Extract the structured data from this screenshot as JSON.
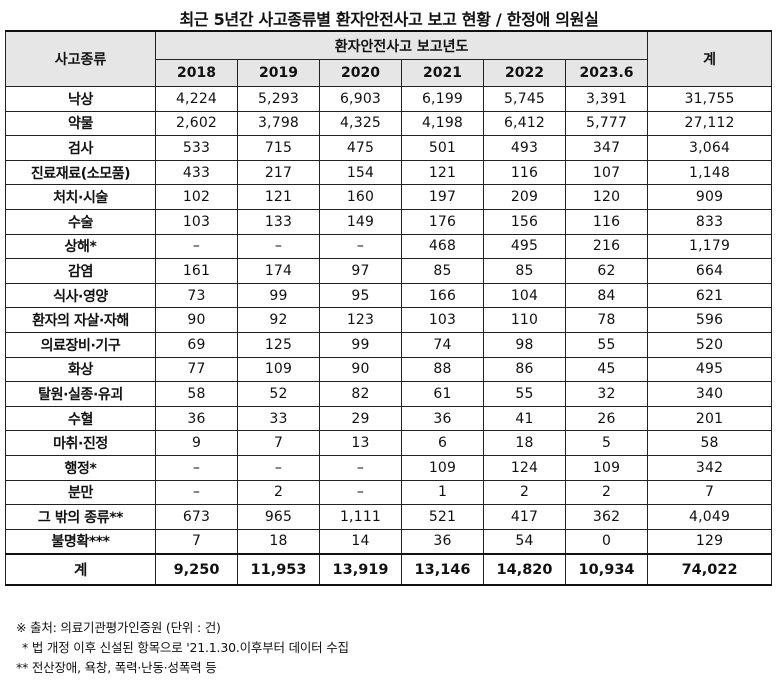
{
  "title": "최근 5년간 사고종류별 환자안전사고 보고 현황 / 한정애 의원실",
  "table": {
    "header": {
      "category": "사고종류",
      "group": "환자안전사고 보고년도",
      "total": "계",
      "years": [
        "2018",
        "2019",
        "2020",
        "2021",
        "2022",
        "2023.6"
      ]
    },
    "rows": [
      {
        "category": "낙상",
        "values": [
          "4,224",
          "5,293",
          "6,903",
          "6,199",
          "5,745",
          "3,391"
        ],
        "total": "31,755"
      },
      {
        "category": "약물",
        "values": [
          "2,602",
          "3,798",
          "4,325",
          "4,198",
          "6,412",
          "5,777"
        ],
        "total": "27,112"
      },
      {
        "category": "검사",
        "values": [
          "533",
          "715",
          "475",
          "501",
          "493",
          "347"
        ],
        "total": "3,064"
      },
      {
        "category": "진료재료(소모품)",
        "values": [
          "433",
          "217",
          "154",
          "121",
          "116",
          "107"
        ],
        "total": "1,148"
      },
      {
        "category": "처치·시술",
        "values": [
          "102",
          "121",
          "160",
          "197",
          "209",
          "120"
        ],
        "total": "909"
      },
      {
        "category": "수술",
        "values": [
          "103",
          "133",
          "149",
          "176",
          "156",
          "116"
        ],
        "total": "833"
      },
      {
        "category": "상해*",
        "values": [
          "–",
          "–",
          "–",
          "468",
          "495",
          "216"
        ],
        "total": "1,179"
      },
      {
        "category": "감염",
        "values": [
          "161",
          "174",
          "97",
          "85",
          "85",
          "62"
        ],
        "total": "664"
      },
      {
        "category": "식사·영양",
        "values": [
          "73",
          "99",
          "95",
          "166",
          "104",
          "84"
        ],
        "total": "621"
      },
      {
        "category": "환자의 자살·자해",
        "values": [
          "90",
          "92",
          "123",
          "103",
          "110",
          "78"
        ],
        "total": "596"
      },
      {
        "category": "의료장비·기구",
        "values": [
          "69",
          "125",
          "99",
          "74",
          "98",
          "55"
        ],
        "total": "520"
      },
      {
        "category": "화상",
        "values": [
          "77",
          "109",
          "90",
          "88",
          "86",
          "45"
        ],
        "total": "495"
      },
      {
        "category": "탈원·실종·유괴",
        "values": [
          "58",
          "52",
          "82",
          "61",
          "55",
          "32"
        ],
        "total": "340"
      },
      {
        "category": "수혈",
        "values": [
          "36",
          "33",
          "29",
          "36",
          "41",
          "26"
        ],
        "total": "201"
      },
      {
        "category": "마취·진정",
        "values": [
          "9",
          "7",
          "13",
          "6",
          "18",
          "5"
        ],
        "total": "58"
      },
      {
        "category": "행정*",
        "values": [
          "–",
          "–",
          "–",
          "109",
          "124",
          "109"
        ],
        "total": "342"
      },
      {
        "category": "분만",
        "values": [
          "–",
          "2",
          "–",
          "1",
          "2",
          "2"
        ],
        "total": "7"
      },
      {
        "category": "그 밖의 종류**",
        "values": [
          "673",
          "965",
          "1,111",
          "521",
          "417",
          "362"
        ],
        "total": "4,049"
      },
      {
        "category": "불명확***",
        "values": [
          "7",
          "18",
          "14",
          "36",
          "54",
          "0"
        ],
        "total": "129"
      }
    ],
    "total_row": {
      "category": "계",
      "values": [
        "9,250",
        "11,953",
        "13,919",
        "13,146",
        "14,820",
        "10,934"
      ],
      "total": "74,022"
    }
  },
  "notes": [
    "※ 출처: 의료기관평가인증원 (단위 : 건)",
    "* 법 개정 이후 신설된 항목으로 '21.1.30.이후부터 데이터 수집",
    "** 전산장애, 욕창, 폭력·난동·성폭력 등"
  ]
}
